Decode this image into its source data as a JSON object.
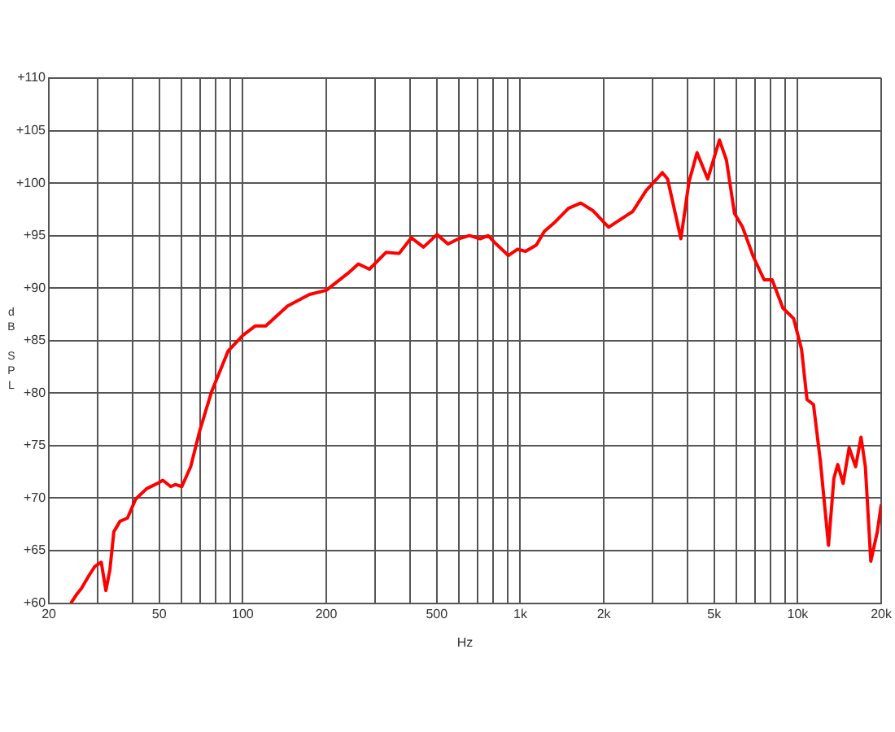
{
  "chart_data": {
    "type": "line",
    "xlabel": "Hz",
    "ylabel": "dB SPL",
    "log": "x",
    "grid": true,
    "legend": false,
    "marker": "none",
    "line_style": "solid",
    "xlim": [
      20,
      20000
    ],
    "ylim": [
      60,
      110
    ],
    "xticks": [
      20,
      {
        "value": 30,
        "label": null
      },
      {
        "value": 40,
        "label": null
      },
      50,
      {
        "value": 60,
        "label": null
      },
      {
        "value": 70,
        "label": null
      },
      {
        "value": 80,
        "label": null
      },
      {
        "value": 90,
        "label": null
      },
      100,
      200,
      {
        "value": 300,
        "label": null
      },
      {
        "value": 400,
        "label": null
      },
      500,
      {
        "value": 600,
        "label": null
      },
      {
        "value": 700,
        "label": null
      },
      {
        "value": 800,
        "label": null
      },
      {
        "value": 900,
        "label": null
      },
      {
        "value": 1000,
        "label": "1k"
      },
      {
        "value": 2000,
        "label": "2k"
      },
      {
        "value": 3000,
        "label": null
      },
      {
        "value": 4000,
        "label": null
      },
      {
        "value": 5000,
        "label": "5k"
      },
      {
        "value": 6000,
        "label": null
      },
      {
        "value": 7000,
        "label": null
      },
      {
        "value": 8000,
        "label": null
      },
      {
        "value": 9000,
        "label": null
      },
      {
        "value": 10000,
        "label": "10k"
      },
      {
        "value": 20000,
        "label": "20k"
      }
    ],
    "yticks": [
      {
        "value": 60,
        "label": "+60"
      },
      {
        "value": 65,
        "label": "+65"
      },
      {
        "value": 70,
        "label": "+70"
      },
      {
        "value": 75,
        "label": "+75"
      },
      {
        "value": 80,
        "label": "+80"
      },
      {
        "value": 85,
        "label": "+85"
      },
      {
        "value": 90,
        "label": "+90"
      },
      {
        "value": 95,
        "label": "+95"
      },
      {
        "value": 100,
        "label": "+100"
      },
      {
        "value": 105,
        "label": "+105"
      },
      {
        "value": 110,
        "label": "+110"
      }
    ],
    "x": [
      24,
      25.3,
      26.2,
      28,
      29.3,
      30.9,
      32.1,
      33.2,
      34.3,
      36.1,
      38.4,
      41.1,
      45,
      49.2,
      51.5,
      55,
      57.1,
      60.3,
      64.9,
      70.1,
      77.1,
      88.5,
      100,
      111,
      121,
      145,
      174,
      200,
      239,
      261,
      286,
      328,
      366,
      405,
      448,
      501,
      549,
      600,
      656,
      717,
      766,
      819,
      907,
      978,
      1045,
      1143,
      1221,
      1335,
      1492,
      1652,
      1823,
      2083,
      2380,
      2543,
      2844,
      3107,
      3251,
      3396,
      3793,
      4055,
      4336,
      4739,
      5222,
      5534,
      5918,
      6328,
      6917,
      7564,
      8087,
      8842,
      9666,
      10320,
      10800,
      11400,
      12070,
      12910,
      13500,
      13940,
      14580,
      15320,
      16170,
      16910,
      17530,
      18340,
      19360,
      20000
    ],
    "series": [
      {
        "color": "#ff0000",
        "values": [
          60,
          60.9,
          61.4,
          62.7,
          63.5,
          63.9,
          61.2,
          63.2,
          66.8,
          67.8,
          68.1,
          69.9,
          70.9,
          71.4,
          71.7,
          71.1,
          71.3,
          71.1,
          73,
          76.5,
          80.1,
          84,
          85.5,
          86.4,
          86.4,
          88.3,
          89.4,
          89.8,
          91.4,
          92.3,
          91.8,
          93.4,
          93.3,
          94.8,
          93.9,
          95.1,
          94.2,
          94.7,
          95,
          94.7,
          95,
          94.2,
          93.1,
          93.7,
          93.5,
          94.1,
          95.4,
          96.3,
          97.6,
          98.1,
          97.4,
          95.8,
          96.8,
          97.3,
          99.3,
          100.4,
          101,
          100.4,
          94.7,
          100.1,
          102.9,
          100.4,
          104.1,
          102.2,
          97.1,
          95.8,
          93,
          90.8,
          90.8,
          88.1,
          87.1,
          84.2,
          79.4,
          78.9,
          73.5,
          65.5,
          71.9,
          73.2,
          71.4,
          74.8,
          73,
          75.8,
          73,
          64,
          66.8,
          69.4
        ]
      }
    ]
  }
}
